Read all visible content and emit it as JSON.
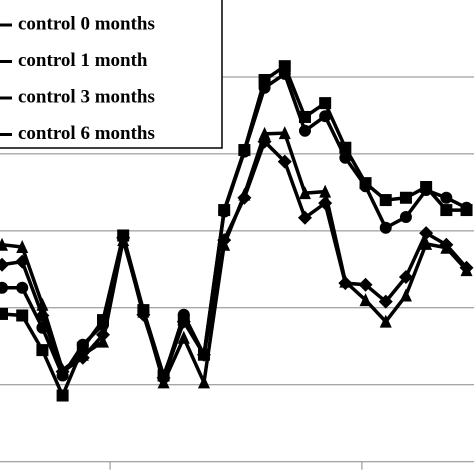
{
  "chart_data": {
    "type": "line",
    "x": [
      1,
      2,
      3,
      4,
      5,
      6,
      7,
      8,
      9,
      10,
      11,
      12,
      13,
      14,
      15,
      16,
      17,
      18,
      19,
      20,
      21,
      22,
      23,
      24
    ],
    "series": [
      {
        "name": "control 0 months",
        "color": "#000000",
        "marker": "circle",
        "values": [
          2.26,
          2.26,
          1.74,
          1.12,
          1.52,
          1.78,
          2.91,
          1.95,
          1.09,
          1.91,
          1.39,
          3.25,
          4.03,
          4.86,
          5.04,
          4.3,
          4.49,
          3.95,
          3.58,
          3.04,
          3.18,
          3.53,
          3.43,
          3.3
        ]
      },
      {
        "name": "control 1 month",
        "color": "#000000",
        "marker": "square",
        "values": [
          1.92,
          1.9,
          1.45,
          0.86,
          1.48,
          1.84,
          2.94,
          1.97,
          1.12,
          1.84,
          1.39,
          3.27,
          4.05,
          4.96,
          5.14,
          4.48,
          4.66,
          4.08,
          3.62,
          3.4,
          3.43,
          3.57,
          3.27,
          3.27
        ]
      },
      {
        "name": "control 3 months",
        "color": "#000000",
        "marker": "triangle",
        "values": [
          2.82,
          2.79,
          2.04,
          1.19,
          1.39,
          1.56,
          2.88,
          1.95,
          1.03,
          1.61,
          1.03,
          2.82,
          3.47,
          4.26,
          4.27,
          3.49,
          3.51,
          2.34,
          2.1,
          1.82,
          2.16,
          2.83,
          2.78,
          2.49
        ]
      },
      {
        "name": "control 6 months",
        "color": "#000000",
        "marker": "diamond",
        "values": [
          2.56,
          2.6,
          1.9,
          1.17,
          1.35,
          1.65,
          2.91,
          1.91,
          1.09,
          1.82,
          1.39,
          2.88,
          3.43,
          4.16,
          3.9,
          3.17,
          3.36,
          2.32,
          2.3,
          2.08,
          2.4,
          2.97,
          2.82,
          2.52
        ]
      }
    ],
    "xlim": [
      0.9,
      24.37
    ],
    "xticks": [
      6.35,
      18.82
    ],
    "ylim": [
      -0.16,
      6
    ],
    "yticks": [
      1,
      2,
      3,
      4,
      5
    ],
    "grid": true
  }
}
